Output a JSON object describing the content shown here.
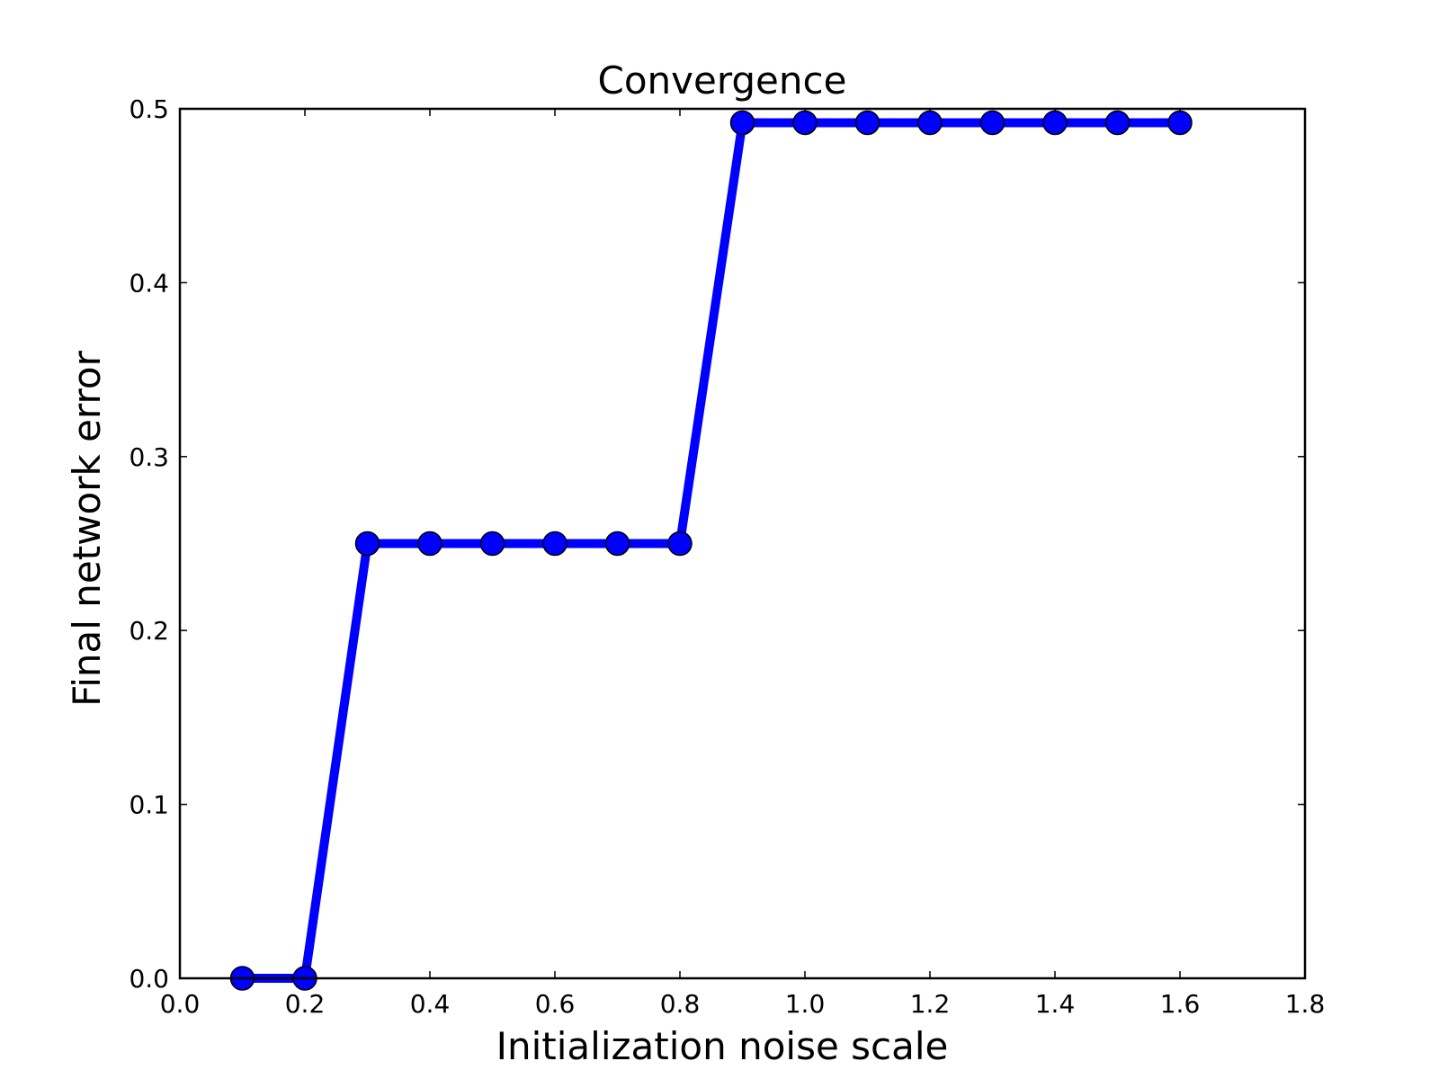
{
  "chart_data": {
    "type": "line",
    "title": "Convergence",
    "xlabel": "Initialization noise scale",
    "ylabel": "Final network error",
    "xlim": [
      0.0,
      1.8
    ],
    "ylim": [
      0.0,
      0.5
    ],
    "xticks": [
      "0.0",
      "0.2",
      "0.4",
      "0.6",
      "0.8",
      "1.0",
      "1.2",
      "1.4",
      "1.6",
      "1.8"
    ],
    "yticks": [
      "0.0",
      "0.1",
      "0.2",
      "0.3",
      "0.4",
      "0.5"
    ],
    "grid": false,
    "series": [
      {
        "color": "#0000ff",
        "marker": "circle",
        "x": [
          0.1,
          0.2,
          0.3,
          0.4,
          0.5,
          0.6,
          0.7,
          0.8,
          0.9,
          1.0,
          1.1,
          1.2,
          1.3,
          1.4,
          1.5,
          1.6
        ],
        "y": [
          0.0,
          0.0,
          0.25,
          0.25,
          0.25,
          0.25,
          0.25,
          0.25,
          0.492,
          0.492,
          0.492,
          0.492,
          0.492,
          0.492,
          0.492,
          0.492
        ]
      }
    ]
  }
}
